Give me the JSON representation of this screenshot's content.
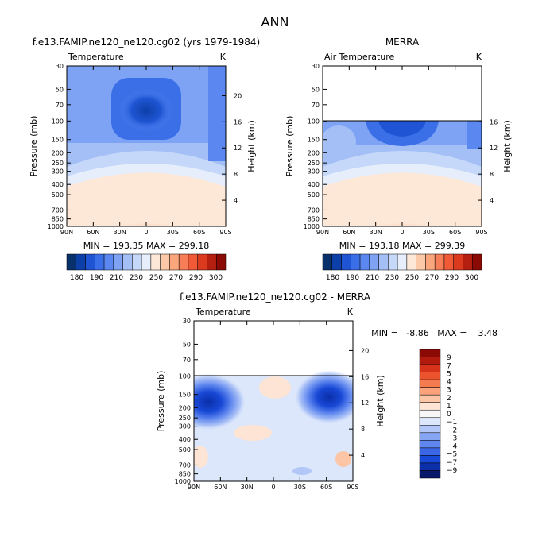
{
  "figure_title": "ANN",
  "colors": {
    "temperature_levels": [
      "#08306b",
      "#0d3fa8",
      "#1f55d4",
      "#3a6fe8",
      "#5a88f0",
      "#7ea3f4",
      "#a3bff6",
      "#c6d8f9",
      "#e6eefc",
      "#fde7d7",
      "#fcc9a8",
      "#fba57c",
      "#f77e56",
      "#f05a36",
      "#db3a1f",
      "#b51f10",
      "#8a0a05"
    ],
    "difference_levels": [
      "#08196b",
      "#0a2fa8",
      "#1848d6",
      "#3b67e6",
      "#5e86ee",
      "#86a6f3",
      "#b2c7f7",
      "#dce7fb",
      "#f7f7f7",
      "#fde4d4",
      "#fbc5a6",
      "#f9a27b",
      "#f47a50",
      "#eb522e",
      "#d6331b",
      "#b01b0e",
      "#8b0a05"
    ]
  },
  "chart_data": [
    {
      "type": "heatmap",
      "title": "f.e13.FAMIP.ne120_ne120.cg02 (yrs 1979-1984)",
      "subtitle_left": "Temperature",
      "subtitle_right": "K",
      "xlabel": "",
      "ylabel": "Pressure (mb)",
      "ylabel_right": "Height (km)",
      "x_ticks": [
        "90N",
        "60N",
        "30N",
        "0",
        "30S",
        "60S",
        "90S"
      ],
      "x_range": [
        90,
        -90
      ],
      "y_ticks": [
        30,
        50,
        70,
        100,
        150,
        200,
        250,
        300,
        400,
        500,
        700,
        850,
        1000
      ],
      "y_range": [
        30,
        1000
      ],
      "y_scale": "log",
      "y_right_ticks": [
        20,
        16,
        12,
        8,
        4
      ],
      "stats_text": "MIN = 193.35   MAX = 299.18",
      "min": 193.35,
      "max": 299.18,
      "missing_above_mb": null,
      "colorbar_orientation": "horizontal",
      "colorbar_labels": [
        "180",
        "190",
        "210",
        "230",
        "250",
        "270",
        "290",
        "300"
      ],
      "colorbar_levels": [
        180,
        185,
        190,
        200,
        210,
        220,
        230,
        240,
        250,
        260,
        270,
        280,
        290,
        295,
        300
      ]
    },
    {
      "type": "heatmap",
      "title": "MERRA",
      "subtitle_left": "Air Temperature",
      "subtitle_right": "K",
      "xlabel": "",
      "ylabel": "Pressure (mb)",
      "ylabel_right": "Height (km)",
      "x_ticks": [
        "90N",
        "60N",
        "30N",
        "0",
        "30S",
        "60S",
        "90S"
      ],
      "x_range": [
        90,
        -90
      ],
      "y_ticks": [
        30,
        50,
        70,
        100,
        150,
        200,
        250,
        300,
        400,
        500,
        700,
        850,
        1000
      ],
      "y_range": [
        30,
        1000
      ],
      "y_scale": "log",
      "y_right_ticks": [
        16,
        12,
        8,
        4
      ],
      "stats_text": "MIN = 193.18   MAX = 299.39",
      "min": 193.18,
      "max": 299.39,
      "missing_above_mb": 100,
      "colorbar_orientation": "horizontal",
      "colorbar_labels": [
        "180",
        "190",
        "210",
        "230",
        "250",
        "270",
        "290",
        "300"
      ],
      "colorbar_levels": [
        180,
        185,
        190,
        200,
        210,
        220,
        230,
        240,
        250,
        260,
        270,
        280,
        290,
        295,
        300
      ]
    },
    {
      "type": "heatmap",
      "title": "f.e13.FAMIP.ne120_ne120.cg02 - MERRA",
      "subtitle_left": "Temperature",
      "subtitle_right": "K",
      "xlabel": "",
      "ylabel": "Pressure (mb)",
      "ylabel_right": "Height (km)",
      "x_ticks": [
        "90N",
        "60N",
        "30N",
        "0",
        "30S",
        "60S",
        "90S"
      ],
      "x_range": [
        90,
        -90
      ],
      "y_ticks": [
        30,
        50,
        70,
        100,
        150,
        200,
        250,
        300,
        400,
        500,
        700,
        850,
        1000
      ],
      "y_range": [
        30,
        1000
      ],
      "y_scale": "log",
      "y_right_ticks": [
        20,
        16,
        12,
        8,
        4
      ],
      "stats_text": "MIN =   -8.86   MAX =    3.48",
      "min": -8.86,
      "max": 3.48,
      "missing_above_mb": 100,
      "colorbar_orientation": "vertical",
      "colorbar_labels": [
        "9",
        "7",
        "5",
        "4",
        "3",
        "2",
        "1",
        "0",
        "-1",
        "-2",
        "-3",
        "-4",
        "-5",
        "-7",
        "-9"
      ],
      "colorbar_levels": [
        9,
        8,
        7,
        6,
        5,
        4,
        3,
        2,
        1,
        0,
        -1,
        -2,
        -3,
        -4,
        -5,
        -6,
        -7,
        -8,
        -9
      ]
    }
  ]
}
